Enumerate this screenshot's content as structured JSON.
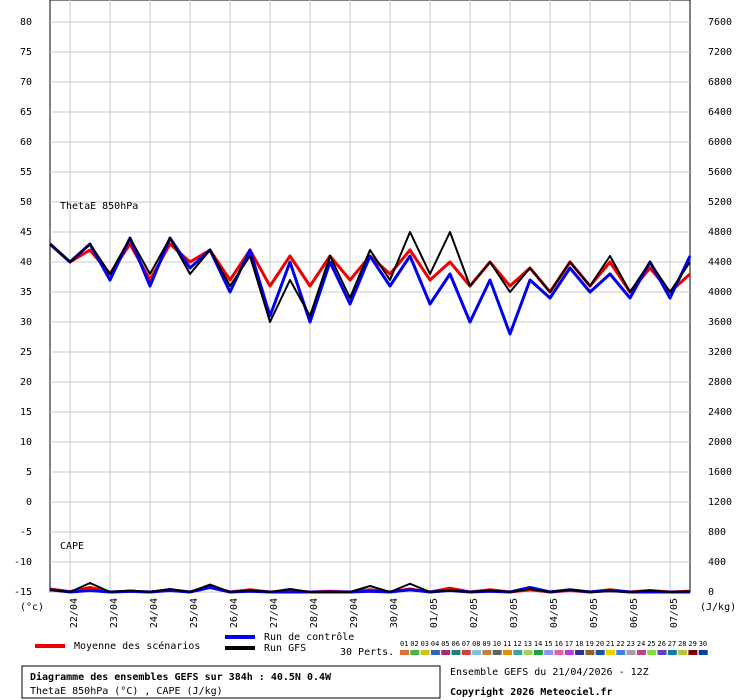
{
  "chart_data": {
    "type": "line",
    "annotations": [
      "ThetaE 850hPa",
      "CAPE"
    ],
    "ylabel": "(°c)",
    "y2label": "(J/kg)",
    "xlim": [
      0,
      384
    ],
    "xticks": [
      {
        "value": 12,
        "label": "22/04"
      },
      {
        "value": 36,
        "label": "23/04"
      },
      {
        "value": 60,
        "label": "24/04"
      },
      {
        "value": 84,
        "label": "25/04"
      },
      {
        "value": 108,
        "label": "26/04"
      },
      {
        "value": 132,
        "label": "27/04"
      },
      {
        "value": 156,
        "label": "28/04"
      },
      {
        "value": 180,
        "label": "29/04"
      },
      {
        "value": 204,
        "label": "30/04"
      },
      {
        "value": 228,
        "label": "01/05"
      },
      {
        "value": 252,
        "label": "02/05"
      },
      {
        "value": 276,
        "label": "03/05"
      },
      {
        "value": 300,
        "label": "04/05"
      },
      {
        "value": 324,
        "label": "05/05"
      },
      {
        "value": 348,
        "label": "06/05"
      },
      {
        "value": 372,
        "label": "07/05"
      }
    ],
    "ylim": [
      -15,
      80
    ],
    "yticks": [
      -15,
      -10,
      -5,
      0,
      5,
      10,
      15,
      20,
      25,
      30,
      35,
      40,
      45,
      50,
      55,
      60,
      65,
      70,
      75,
      80
    ],
    "y2lim": [
      0,
      7600
    ],
    "y2ticks": [
      0,
      400,
      800,
      1200,
      1600,
      2000,
      2400,
      2800,
      3200,
      3600,
      4000,
      4400,
      4800,
      5200,
      5600,
      6000,
      6400,
      6800,
      7200,
      7600
    ],
    "grid": true,
    "x": [
      0,
      12,
      24,
      36,
      48,
      60,
      72,
      84,
      96,
      108,
      120,
      132,
      144,
      156,
      168,
      180,
      192,
      204,
      216,
      228,
      240,
      252,
      264,
      276,
      288,
      300,
      312,
      324,
      336,
      348,
      360,
      372,
      384
    ],
    "series": [
      {
        "name": "Moyenne des scénarios",
        "color": "#ee0000",
        "width": 3,
        "values": [
          43,
          40,
          42,
          38,
          43,
          37,
          43,
          40,
          42,
          37,
          42,
          36,
          41,
          36,
          41,
          37,
          41,
          38,
          42,
          37,
          40,
          36,
          40,
          36,
          39,
          35,
          40,
          36,
          40,
          35,
          39,
          35,
          38
        ]
      },
      {
        "name": "Run de contrôle",
        "color": "#0000ee",
        "width": 3,
        "values": [
          43,
          40,
          43,
          37,
          44,
          36,
          44,
          39,
          42,
          35,
          42,
          31,
          40,
          30,
          40,
          33,
          41,
          36,
          41,
          33,
          38,
          30,
          37,
          28,
          37,
          34,
          39,
          35,
          38,
          34,
          40,
          34,
          41
        ]
      },
      {
        "name": "Run GFS",
        "color": "#000000",
        "width": 2,
        "values": [
          43,
          40,
          43,
          38,
          44,
          38,
          44,
          38,
          42,
          36,
          41,
          30,
          37,
          31,
          41,
          34,
          42,
          37,
          45,
          38,
          45,
          36,
          40,
          35,
          39,
          35,
          40,
          36,
          41,
          35,
          40,
          35,
          40
        ]
      },
      {
        "name": "Moyenne des scénarios",
        "color": "#ee0000",
        "width": 3,
        "axis": "y2",
        "legend": false,
        "values": [
          40,
          5,
          60,
          0,
          10,
          0,
          30,
          0,
          80,
          0,
          30,
          0,
          20,
          0,
          10,
          0,
          30,
          0,
          40,
          0,
          50,
          0,
          30,
          0,
          30,
          0,
          20,
          0,
          30,
          0,
          20,
          0,
          10
        ]
      },
      {
        "name": "Run de contrôle",
        "color": "#0000ee",
        "width": 3,
        "axis": "y2",
        "legend": false,
        "values": [
          30,
          0,
          20,
          0,
          10,
          0,
          20,
          0,
          60,
          0,
          10,
          0,
          0,
          0,
          0,
          0,
          10,
          0,
          30,
          0,
          20,
          0,
          10,
          0,
          60,
          0,
          30,
          0,
          20,
          0,
          0,
          0,
          0
        ]
      },
      {
        "name": "Run GFS",
        "color": "#000000",
        "width": 2,
        "axis": "y2",
        "legend": false,
        "values": [
          30,
          0,
          120,
          0,
          20,
          0,
          40,
          0,
          100,
          0,
          20,
          0,
          40,
          0,
          0,
          0,
          80,
          0,
          110,
          0,
          20,
          0,
          20,
          0,
          40,
          0,
          30,
          0,
          10,
          0,
          20,
          0,
          10
        ]
      }
    ],
    "perturbations_title": "30 Perts.",
    "perturbations": [
      {
        "label": "01",
        "color": "#e07030"
      },
      {
        "label": "02",
        "color": "#50b050"
      },
      {
        "label": "03",
        "color": "#d0c020"
      },
      {
        "label": "04",
        "color": "#3060c0"
      },
      {
        "label": "05",
        "color": "#a03070"
      },
      {
        "label": "06",
        "color": "#208080"
      },
      {
        "label": "07",
        "color": "#d04040"
      },
      {
        "label": "08",
        "color": "#80c0e0"
      },
      {
        "label": "09",
        "color": "#c08040"
      },
      {
        "label": "10",
        "color": "#606060"
      },
      {
        "label": "11",
        "color": "#e09000"
      },
      {
        "label": "12",
        "color": "#40a0a0"
      },
      {
        "label": "13",
        "color": "#a0d060"
      },
      {
        "label": "14",
        "color": "#20a040"
      },
      {
        "label": "15",
        "color": "#9090ff"
      },
      {
        "label": "16",
        "color": "#e060a0"
      },
      {
        "label": "17",
        "color": "#b040e0"
      },
      {
        "label": "18",
        "color": "#303090"
      },
      {
        "label": "19",
        "color": "#906030"
      },
      {
        "label": "20",
        "color": "#2050a0"
      },
      {
        "label": "21",
        "color": "#f0d000"
      },
      {
        "label": "22",
        "color": "#4080e0"
      },
      {
        "label": "23",
        "color": "#a0a0a0"
      },
      {
        "label": "24",
        "color": "#c04080"
      },
      {
        "label": "25",
        "color": "#80e040"
      },
      {
        "label": "26",
        "color": "#6040c0"
      },
      {
        "label": "27",
        "color": "#1080a0"
      },
      {
        "label": "28",
        "color": "#c0c040"
      },
      {
        "label": "29",
        "color": "#800000"
      },
      {
        "label": "30",
        "color": "#0040a0"
      }
    ]
  },
  "footer": {
    "title": "Diagramme des ensembles GEFS sur 384h : 40.5N 0.4W",
    "subtitle": "ThetaE 850hPa (°C) , CAPE (J/kg)",
    "run": "Ensemble GEFS du 21/04/2026 - 12Z",
    "copyright": "Copyright 2026 Meteociel.fr"
  }
}
